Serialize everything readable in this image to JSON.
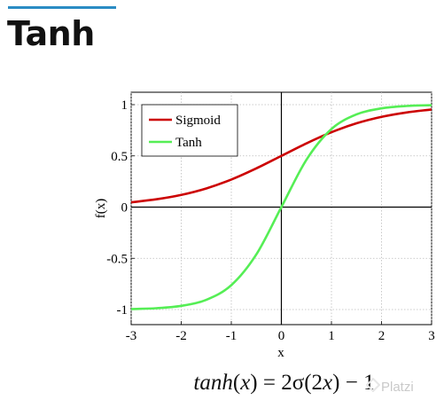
{
  "slide": {
    "title": "Tanh",
    "accent_color": "#2b8cc4"
  },
  "formula": {
    "lhs_func": "tanh",
    "lhs_open": "(",
    "lhs_var": "x",
    "lhs_close": ")",
    "rhs_prefix": " = 2σ(2",
    "rhs_var": "x",
    "rhs_suffix": ") − 1"
  },
  "watermark": {
    "text": "Platzi",
    "color": "#c9c9c9"
  },
  "chart_data": {
    "type": "line",
    "xlabel": "x",
    "ylabel": "f(x)",
    "xlim": [
      -3,
      3
    ],
    "ylim": [
      -1.05,
      1.05
    ],
    "xticks": [
      "-3",
      "-2",
      "-1",
      "0",
      "1",
      "2",
      "3"
    ],
    "yticks": [
      "-1",
      "-0.5",
      "0",
      "0.5",
      "1"
    ],
    "grid": true,
    "legend_position": "top-left",
    "x": [
      -3,
      -2.5,
      -2,
      -1.5,
      -1,
      -0.5,
      0,
      0.5,
      1,
      1.5,
      2,
      2.5,
      3
    ],
    "series": [
      {
        "name": "Sigmoid",
        "color": "#cc0000",
        "values": [
          0.047,
          0.076,
          0.119,
          0.182,
          0.269,
          0.378,
          0.5,
          0.622,
          0.731,
          0.818,
          0.881,
          0.924,
          0.953
        ]
      },
      {
        "name": "Tanh",
        "color": "#55ee55",
        "values": [
          -0.995,
          -0.987,
          -0.964,
          -0.905,
          -0.762,
          -0.462,
          0,
          0.462,
          0.762,
          0.905,
          0.964,
          0.987,
          0.995
        ]
      }
    ]
  }
}
